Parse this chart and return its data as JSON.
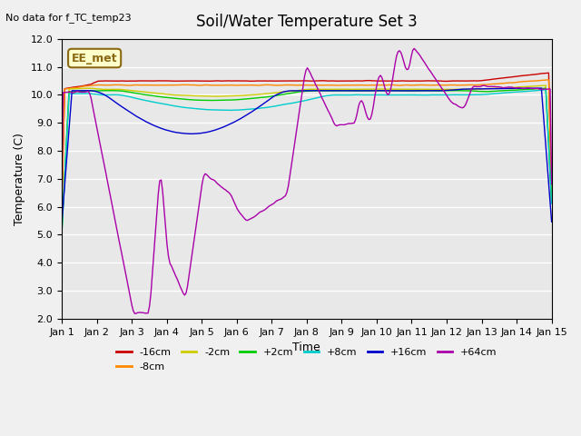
{
  "title": "Soil/Water Temperature Set 3",
  "xlabel": "Time",
  "ylabel": "Temperature (C)",
  "top_left_note": "No data for f_TC_temp23",
  "annotation": "EE_met",
  "ylim": [
    2.0,
    12.0
  ],
  "yticks": [
    2.0,
    3.0,
    4.0,
    5.0,
    6.0,
    7.0,
    8.0,
    9.0,
    10.0,
    11.0,
    12.0
  ],
  "xtick_labels": [
    "Jan 1",
    "Jan 2",
    "Jan 3",
    "Jan 4",
    "Jan 5",
    "Jan 6",
    "Jan 7",
    "Jan 8",
    "Jan 9",
    "Jan 10",
    "Jan 11",
    "Jan 12",
    "Jan 13",
    "Jan 14",
    "Jan 15"
  ],
  "num_days": 14,
  "background_color": "#e8e8e8",
  "axes_bg": "#e8e8e8",
  "series": [
    {
      "label": "-16cm",
      "color": "#cc0000"
    },
    {
      "label": "-8cm",
      "color": "#ff8800"
    },
    {
      "label": "-2cm",
      "color": "#cccc00"
    },
    {
      "label": "+2cm",
      "color": "#00cc00"
    },
    {
      "label": "+8cm",
      "color": "#00cccc"
    },
    {
      "label": "+16cm",
      "color": "#0000cc"
    },
    {
      "label": "+64cm",
      "color": "#aa00aa"
    }
  ],
  "grid_color": "#ffffff",
  "grid_alpha": 1.0
}
